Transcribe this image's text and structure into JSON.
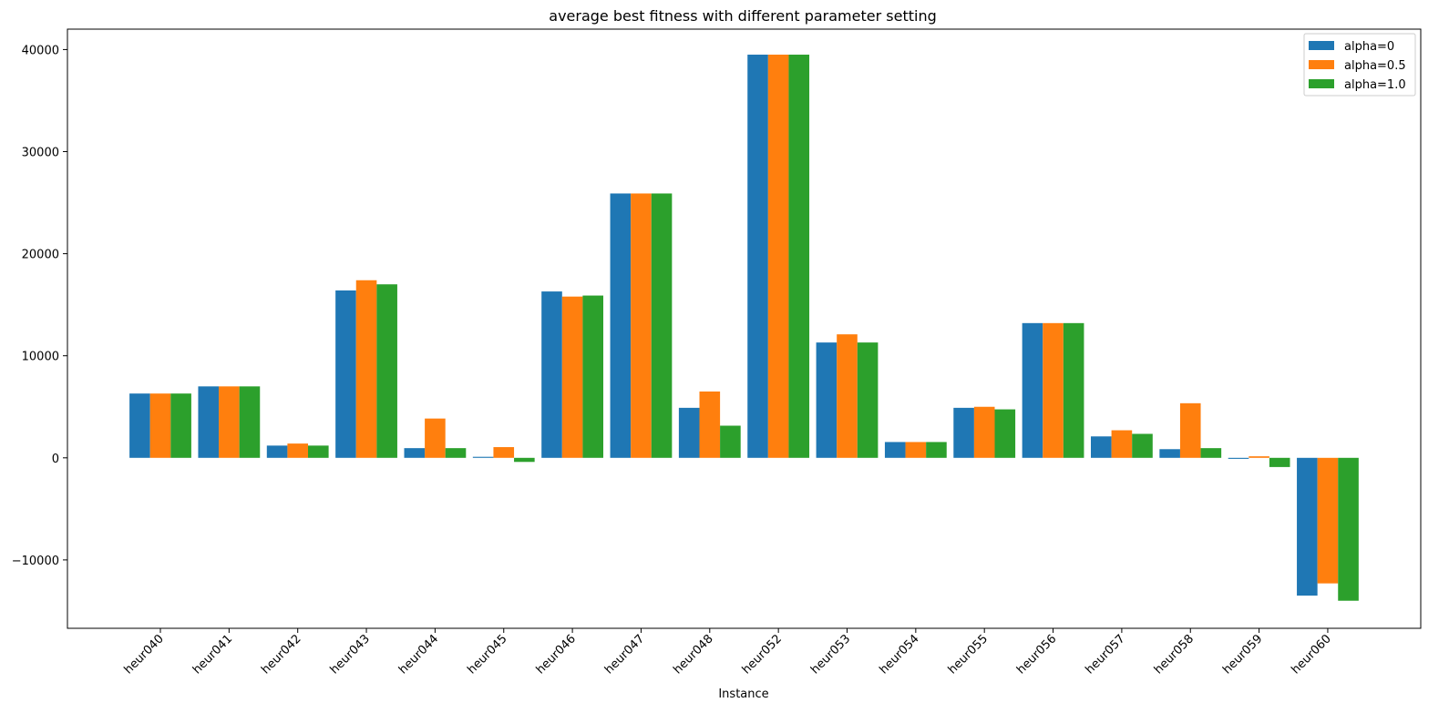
{
  "chart_data": {
    "type": "bar",
    "title": "average best fitness with different parameter setting",
    "xlabel": "Instance",
    "ylabel": "",
    "ylim": [
      -16700,
      42000
    ],
    "yticks": [
      -10000,
      0,
      10000,
      20000,
      30000,
      40000
    ],
    "ytick_labels": [
      "−10000",
      "0",
      "10000",
      "20000",
      "30000",
      "40000"
    ],
    "grid": false,
    "legend_position": "top-right",
    "categories": [
      "heur040",
      "heur041",
      "heur042",
      "heur043",
      "heur044",
      "heur045",
      "heur046",
      "heur047",
      "heur048",
      "heur052",
      "heur053",
      "heur054",
      "heur055",
      "heur056",
      "heur057",
      "heur058",
      "heur059",
      "heur060"
    ],
    "series": [
      {
        "name": "alpha=0",
        "color": "#1f77b4",
        "values": [
          6300,
          7000,
          1200,
          16400,
          950,
          100,
          16300,
          25900,
          4900,
          39500,
          11300,
          1550,
          4900,
          13200,
          2100,
          850,
          -100,
          -13500
        ]
      },
      {
        "name": "alpha=0.5",
        "color": "#ff7f0e",
        "values": [
          6300,
          7000,
          1400,
          17400,
          3850,
          1050,
          15800,
          25900,
          6500,
          39500,
          12100,
          1550,
          5000,
          13200,
          2700,
          5350,
          150,
          -12300
        ]
      },
      {
        "name": "alpha=1.0",
        "color": "#2ca02c",
        "values": [
          6300,
          7000,
          1200,
          17000,
          950,
          -400,
          15900,
          25900,
          3150,
          39500,
          11300,
          1550,
          4750,
          13200,
          2350,
          950,
          -900,
          -14000
        ]
      }
    ]
  }
}
